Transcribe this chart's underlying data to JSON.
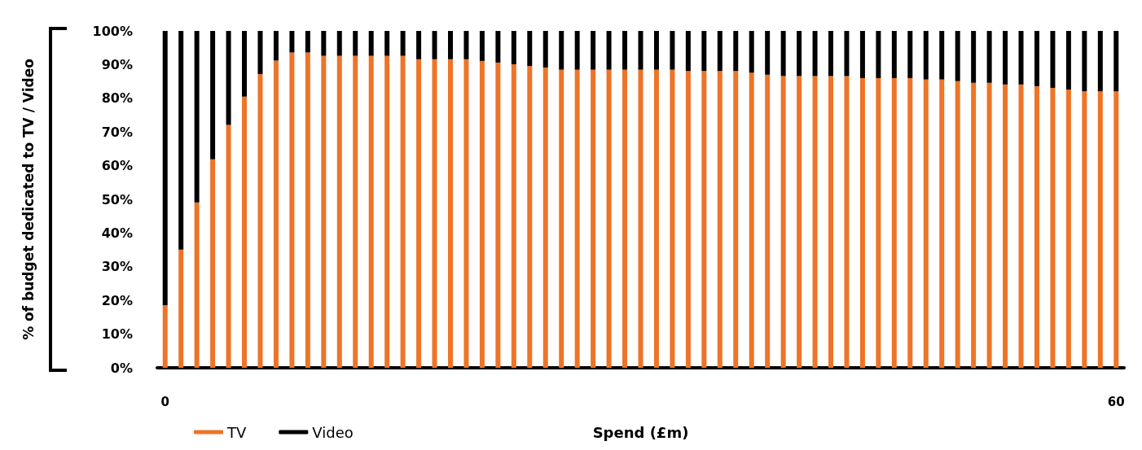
{
  "chart_data": {
    "type": "bar",
    "stacked": true,
    "xlabel": "Spend (£m)",
    "ylabel": "% of budget dedicated to TV / Video",
    "categories": [
      "0",
      null,
      null,
      null,
      null,
      null,
      null,
      null,
      null,
      null,
      null,
      null,
      null,
      null,
      null,
      null,
      null,
      null,
      null,
      null,
      null,
      null,
      null,
      null,
      null,
      null,
      null,
      null,
      null,
      null,
      null,
      null,
      null,
      null,
      null,
      null,
      null,
      null,
      null,
      null,
      null,
      null,
      null,
      null,
      null,
      null,
      null,
      null,
      null,
      null,
      null,
      null,
      null,
      null,
      null,
      null,
      null,
      null,
      null,
      null,
      "60"
    ],
    "series": [
      {
        "name": "TV",
        "color": "#ed7428",
        "values": [
          18.6,
          35.1,
          49.1,
          61.9,
          72.1,
          80.5,
          87.2,
          91.2,
          93.6,
          93.6,
          92.6,
          92.6,
          92.6,
          92.6,
          92.6,
          92.6,
          91.6,
          91.6,
          91.6,
          91.6,
          91.1,
          90.6,
          90.1,
          89.6,
          89.1,
          88.5,
          88.5,
          88.5,
          88.5,
          88.5,
          88.5,
          88.5,
          88.5,
          88.1,
          88.1,
          88.1,
          88.1,
          87.6,
          87.0,
          86.6,
          86.6,
          86.6,
          86.6,
          86.6,
          86.0,
          86.0,
          86.0,
          86.0,
          85.6,
          85.6,
          85.1,
          84.6,
          84.6,
          84.1,
          84.1,
          83.6,
          83.1,
          82.6,
          82.1,
          82.1,
          82.1
        ]
      },
      {
        "name": "Video",
        "color": "#000000",
        "values": [
          81.4,
          64.9,
          50.9,
          38.1,
          27.9,
          19.5,
          12.8,
          8.8,
          6.4,
          6.4,
          7.4,
          7.4,
          7.4,
          7.4,
          7.4,
          7.4,
          8.4,
          8.4,
          8.4,
          8.4,
          8.9,
          9.4,
          9.9,
          10.4,
          10.9,
          11.5,
          11.5,
          11.5,
          11.5,
          11.5,
          11.5,
          11.5,
          11.5,
          11.9,
          11.9,
          11.9,
          11.9,
          12.4,
          13.0,
          13.4,
          13.4,
          13.4,
          13.4,
          13.4,
          14.0,
          14.0,
          14.0,
          14.0,
          14.4,
          14.4,
          14.9,
          15.4,
          15.4,
          15.9,
          15.9,
          16.4,
          16.9,
          17.4,
          17.9,
          17.9,
          17.9
        ]
      }
    ],
    "ylim": [
      0,
      100
    ],
    "yticks": [
      {
        "value": 0,
        "label": "0%"
      },
      {
        "value": 10,
        "label": "10%"
      },
      {
        "value": 20,
        "label": "20%"
      },
      {
        "value": 30,
        "label": "30%"
      },
      {
        "value": 40,
        "label": "40%"
      },
      {
        "value": 50,
        "label": "50%"
      },
      {
        "value": 60,
        "label": "60%"
      },
      {
        "value": 70,
        "label": "70%"
      },
      {
        "value": 80,
        "label": "80%"
      },
      {
        "value": 90,
        "label": "90%"
      },
      {
        "value": 100,
        "label": "100%"
      }
    ],
    "grid": false,
    "legend": "bottom left"
  }
}
